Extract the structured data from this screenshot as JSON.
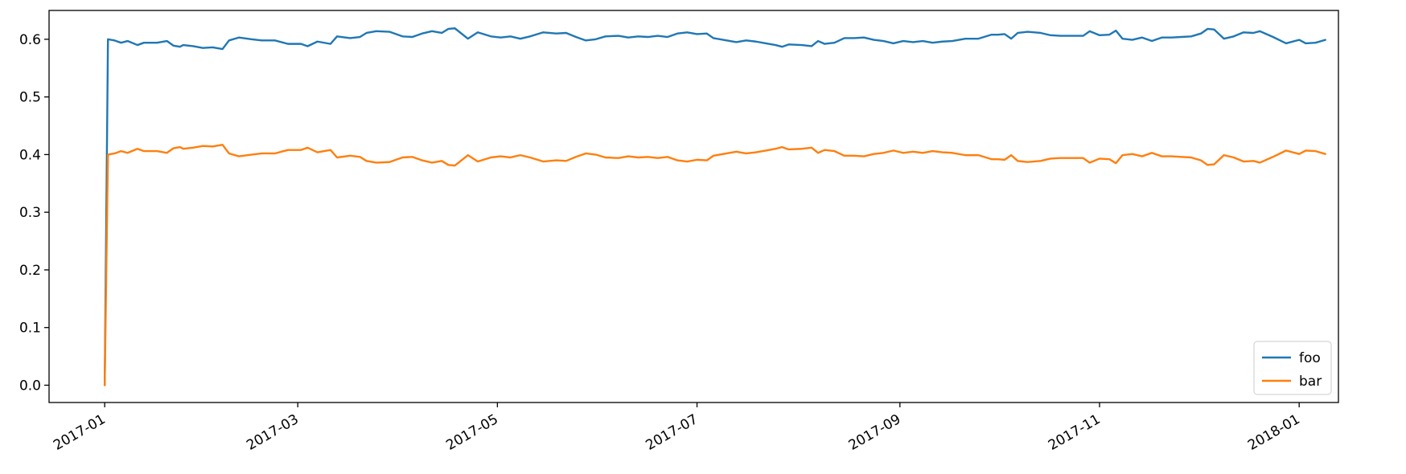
{
  "chart_data": {
    "type": "line",
    "title": "",
    "xlabel": "",
    "ylabel": "",
    "x_axis_type": "date",
    "xlim": [
      "2016-12-15",
      "2018-01-13"
    ],
    "ylim": [
      -0.03,
      0.65
    ],
    "y_ticks": [
      0.0,
      0.1,
      0.2,
      0.3,
      0.4,
      0.5,
      0.6
    ],
    "x_ticks": [
      "2017-01",
      "2017-03",
      "2017-05",
      "2017-07",
      "2017-09",
      "2017-11",
      "2018-01"
    ],
    "x_tick_dates": [
      "2017-01-01",
      "2017-03-01",
      "2017-05-01",
      "2017-07-01",
      "2017-09-01",
      "2017-11-01",
      "2018-01-01"
    ],
    "x_tick_rotation": "30 degrees",
    "grid": false,
    "legend_position": "lower right",
    "series": [
      {
        "name": "foo",
        "color": "#1f77b4",
        "points": [
          [
            "2017-01-01",
            0.0
          ],
          [
            "2017-01-02",
            0.6
          ],
          [
            "2017-01-04",
            0.598
          ],
          [
            "2017-01-06",
            0.594
          ],
          [
            "2017-01-08",
            0.597
          ],
          [
            "2017-01-11",
            0.59
          ],
          [
            "2017-01-13",
            0.594
          ],
          [
            "2017-01-17",
            0.594
          ],
          [
            "2017-01-20",
            0.597
          ],
          [
            "2017-01-22",
            0.589
          ],
          [
            "2017-01-24",
            0.587
          ],
          [
            "2017-01-25",
            0.59
          ],
          [
            "2017-01-28",
            0.588
          ],
          [
            "2017-01-31",
            0.585
          ],
          [
            "2017-02-03",
            0.586
          ],
          [
            "2017-02-06",
            0.583
          ],
          [
            "2017-02-08",
            0.598
          ],
          [
            "2017-02-11",
            0.603
          ],
          [
            "2017-02-15",
            0.6
          ],
          [
            "2017-02-18",
            0.598
          ],
          [
            "2017-02-22",
            0.598
          ],
          [
            "2017-02-26",
            0.592
          ],
          [
            "2017-03-02",
            0.592
          ],
          [
            "2017-03-04",
            0.588
          ],
          [
            "2017-03-07",
            0.596
          ],
          [
            "2017-03-11",
            0.592
          ],
          [
            "2017-03-13",
            0.605
          ],
          [
            "2017-03-17",
            0.602
          ],
          [
            "2017-03-20",
            0.604
          ],
          [
            "2017-03-22",
            0.611
          ],
          [
            "2017-03-25",
            0.614
          ],
          [
            "2017-03-29",
            0.613
          ],
          [
            "2017-04-02",
            0.605
          ],
          [
            "2017-04-05",
            0.604
          ],
          [
            "2017-04-08",
            0.61
          ],
          [
            "2017-04-11",
            0.614
          ],
          [
            "2017-04-14",
            0.611
          ],
          [
            "2017-04-16",
            0.618
          ],
          [
            "2017-04-18",
            0.619
          ],
          [
            "2017-04-22",
            0.601
          ],
          [
            "2017-04-25",
            0.612
          ],
          [
            "2017-04-29",
            0.605
          ],
          [
            "2017-05-02",
            0.603
          ],
          [
            "2017-05-05",
            0.605
          ],
          [
            "2017-05-08",
            0.601
          ],
          [
            "2017-05-11",
            0.605
          ],
          [
            "2017-05-15",
            0.612
          ],
          [
            "2017-05-19",
            0.61
          ],
          [
            "2017-05-22",
            0.611
          ],
          [
            "2017-05-25",
            0.604
          ],
          [
            "2017-05-28",
            0.598
          ],
          [
            "2017-05-31",
            0.6
          ],
          [
            "2017-06-03",
            0.605
          ],
          [
            "2017-06-07",
            0.606
          ],
          [
            "2017-06-10",
            0.603
          ],
          [
            "2017-06-13",
            0.605
          ],
          [
            "2017-06-16",
            0.604
          ],
          [
            "2017-06-19",
            0.606
          ],
          [
            "2017-06-22",
            0.604
          ],
          [
            "2017-06-25",
            0.61
          ],
          [
            "2017-06-28",
            0.612
          ],
          [
            "2017-07-01",
            0.609
          ],
          [
            "2017-07-04",
            0.61
          ],
          [
            "2017-07-06",
            0.602
          ],
          [
            "2017-07-09",
            0.599
          ],
          [
            "2017-07-13",
            0.595
          ],
          [
            "2017-07-16",
            0.598
          ],
          [
            "2017-07-19",
            0.596
          ],
          [
            "2017-07-22",
            0.593
          ],
          [
            "2017-07-25",
            0.59
          ],
          [
            "2017-07-27",
            0.587
          ],
          [
            "2017-07-29",
            0.591
          ],
          [
            "2017-08-02",
            0.59
          ],
          [
            "2017-08-05",
            0.588
          ],
          [
            "2017-08-07",
            0.597
          ],
          [
            "2017-08-09",
            0.592
          ],
          [
            "2017-08-12",
            0.594
          ],
          [
            "2017-08-15",
            0.602
          ],
          [
            "2017-08-18",
            0.602
          ],
          [
            "2017-08-21",
            0.603
          ],
          [
            "2017-08-24",
            0.599
          ],
          [
            "2017-08-27",
            0.597
          ],
          [
            "2017-08-30",
            0.593
          ],
          [
            "2017-09-02",
            0.597
          ],
          [
            "2017-09-05",
            0.595
          ],
          [
            "2017-09-08",
            0.597
          ],
          [
            "2017-09-11",
            0.594
          ],
          [
            "2017-09-14",
            0.596
          ],
          [
            "2017-09-17",
            0.597
          ],
          [
            "2017-09-21",
            0.601
          ],
          [
            "2017-09-25",
            0.601
          ],
          [
            "2017-09-29",
            0.608
          ],
          [
            "2017-10-01",
            0.608
          ],
          [
            "2017-10-03",
            0.609
          ],
          [
            "2017-10-05",
            0.601
          ],
          [
            "2017-10-07",
            0.611
          ],
          [
            "2017-10-10",
            0.613
          ],
          [
            "2017-10-14",
            0.611
          ],
          [
            "2017-10-17",
            0.607
          ],
          [
            "2017-10-20",
            0.606
          ],
          [
            "2017-10-24",
            0.606
          ],
          [
            "2017-10-27",
            0.606
          ],
          [
            "2017-10-29",
            0.614
          ],
          [
            "2017-11-01",
            0.607
          ],
          [
            "2017-11-04",
            0.608
          ],
          [
            "2017-11-06",
            0.615
          ],
          [
            "2017-11-08",
            0.601
          ],
          [
            "2017-11-11",
            0.599
          ],
          [
            "2017-11-14",
            0.603
          ],
          [
            "2017-11-17",
            0.597
          ],
          [
            "2017-11-20",
            0.603
          ],
          [
            "2017-11-23",
            0.603
          ],
          [
            "2017-11-26",
            0.604
          ],
          [
            "2017-11-29",
            0.605
          ],
          [
            "2017-12-02",
            0.61
          ],
          [
            "2017-12-04",
            0.618
          ],
          [
            "2017-12-06",
            0.617
          ],
          [
            "2017-12-09",
            0.601
          ],
          [
            "2017-12-12",
            0.605
          ],
          [
            "2017-12-15",
            0.612
          ],
          [
            "2017-12-18",
            0.611
          ],
          [
            "2017-12-20",
            0.614
          ],
          [
            "2017-12-24",
            0.604
          ],
          [
            "2017-12-28",
            0.593
          ],
          [
            "2018-01-01",
            0.599
          ],
          [
            "2018-01-03",
            0.593
          ],
          [
            "2018-01-06",
            0.594
          ],
          [
            "2018-01-09",
            0.599
          ]
        ]
      },
      {
        "name": "bar",
        "color": "#ff7f0e",
        "points": [
          [
            "2017-01-01",
            0.0
          ],
          [
            "2017-01-02",
            0.4
          ],
          [
            "2017-01-04",
            0.402
          ],
          [
            "2017-01-06",
            0.406
          ],
          [
            "2017-01-08",
            0.403
          ],
          [
            "2017-01-11",
            0.41
          ],
          [
            "2017-01-13",
            0.406
          ],
          [
            "2017-01-17",
            0.406
          ],
          [
            "2017-01-20",
            0.403
          ],
          [
            "2017-01-22",
            0.411
          ],
          [
            "2017-01-24",
            0.413
          ],
          [
            "2017-01-25",
            0.41
          ],
          [
            "2017-01-28",
            0.412
          ],
          [
            "2017-01-31",
            0.415
          ],
          [
            "2017-02-03",
            0.414
          ],
          [
            "2017-02-06",
            0.417
          ],
          [
            "2017-02-08",
            0.402
          ],
          [
            "2017-02-11",
            0.397
          ],
          [
            "2017-02-15",
            0.4
          ],
          [
            "2017-02-18",
            0.402
          ],
          [
            "2017-02-22",
            0.402
          ],
          [
            "2017-02-26",
            0.408
          ],
          [
            "2017-03-02",
            0.408
          ],
          [
            "2017-03-04",
            0.412
          ],
          [
            "2017-03-07",
            0.404
          ],
          [
            "2017-03-11",
            0.408
          ],
          [
            "2017-03-13",
            0.395
          ],
          [
            "2017-03-17",
            0.398
          ],
          [
            "2017-03-20",
            0.396
          ],
          [
            "2017-03-22",
            0.389
          ],
          [
            "2017-03-25",
            0.386
          ],
          [
            "2017-03-29",
            0.387
          ],
          [
            "2017-04-02",
            0.395
          ],
          [
            "2017-04-05",
            0.396
          ],
          [
            "2017-04-08",
            0.39
          ],
          [
            "2017-04-11",
            0.386
          ],
          [
            "2017-04-14",
            0.389
          ],
          [
            "2017-04-16",
            0.382
          ],
          [
            "2017-04-18",
            0.381
          ],
          [
            "2017-04-22",
            0.399
          ],
          [
            "2017-04-25",
            0.388
          ],
          [
            "2017-04-29",
            0.395
          ],
          [
            "2017-05-02",
            0.397
          ],
          [
            "2017-05-05",
            0.395
          ],
          [
            "2017-05-08",
            0.399
          ],
          [
            "2017-05-11",
            0.395
          ],
          [
            "2017-05-15",
            0.388
          ],
          [
            "2017-05-19",
            0.39
          ],
          [
            "2017-05-22",
            0.389
          ],
          [
            "2017-05-25",
            0.396
          ],
          [
            "2017-05-28",
            0.402
          ],
          [
            "2017-05-31",
            0.4
          ],
          [
            "2017-06-03",
            0.395
          ],
          [
            "2017-06-07",
            0.394
          ],
          [
            "2017-06-10",
            0.397
          ],
          [
            "2017-06-13",
            0.395
          ],
          [
            "2017-06-16",
            0.396
          ],
          [
            "2017-06-19",
            0.394
          ],
          [
            "2017-06-22",
            0.396
          ],
          [
            "2017-06-25",
            0.39
          ],
          [
            "2017-06-28",
            0.388
          ],
          [
            "2017-07-01",
            0.391
          ],
          [
            "2017-07-04",
            0.39
          ],
          [
            "2017-07-06",
            0.398
          ],
          [
            "2017-07-09",
            0.401
          ],
          [
            "2017-07-13",
            0.405
          ],
          [
            "2017-07-16",
            0.402
          ],
          [
            "2017-07-19",
            0.404
          ],
          [
            "2017-07-22",
            0.407
          ],
          [
            "2017-07-25",
            0.41
          ],
          [
            "2017-07-27",
            0.413
          ],
          [
            "2017-07-29",
            0.409
          ],
          [
            "2017-08-02",
            0.41
          ],
          [
            "2017-08-05",
            0.412
          ],
          [
            "2017-08-07",
            0.403
          ],
          [
            "2017-08-09",
            0.408
          ],
          [
            "2017-08-12",
            0.406
          ],
          [
            "2017-08-15",
            0.398
          ],
          [
            "2017-08-18",
            0.398
          ],
          [
            "2017-08-21",
            0.397
          ],
          [
            "2017-08-24",
            0.401
          ],
          [
            "2017-08-27",
            0.403
          ],
          [
            "2017-08-30",
            0.407
          ],
          [
            "2017-09-02",
            0.403
          ],
          [
            "2017-09-05",
            0.405
          ],
          [
            "2017-09-08",
            0.403
          ],
          [
            "2017-09-11",
            0.406
          ],
          [
            "2017-09-14",
            0.404
          ],
          [
            "2017-09-17",
            0.403
          ],
          [
            "2017-09-21",
            0.399
          ],
          [
            "2017-09-25",
            0.399
          ],
          [
            "2017-09-29",
            0.392
          ],
          [
            "2017-10-01",
            0.392
          ],
          [
            "2017-10-03",
            0.391
          ],
          [
            "2017-10-05",
            0.399
          ],
          [
            "2017-10-07",
            0.389
          ],
          [
            "2017-10-10",
            0.387
          ],
          [
            "2017-10-14",
            0.389
          ],
          [
            "2017-10-17",
            0.393
          ],
          [
            "2017-10-20",
            0.394
          ],
          [
            "2017-10-24",
            0.394
          ],
          [
            "2017-10-27",
            0.394
          ],
          [
            "2017-10-29",
            0.386
          ],
          [
            "2017-11-01",
            0.393
          ],
          [
            "2017-11-04",
            0.392
          ],
          [
            "2017-11-06",
            0.385
          ],
          [
            "2017-11-08",
            0.399
          ],
          [
            "2017-11-11",
            0.401
          ],
          [
            "2017-11-14",
            0.397
          ],
          [
            "2017-11-17",
            0.403
          ],
          [
            "2017-11-20",
            0.397
          ],
          [
            "2017-11-23",
            0.397
          ],
          [
            "2017-11-26",
            0.396
          ],
          [
            "2017-11-29",
            0.395
          ],
          [
            "2017-12-02",
            0.39
          ],
          [
            "2017-12-04",
            0.382
          ],
          [
            "2017-12-06",
            0.383
          ],
          [
            "2017-12-09",
            0.399
          ],
          [
            "2017-12-12",
            0.395
          ],
          [
            "2017-12-15",
            0.388
          ],
          [
            "2017-12-18",
            0.389
          ],
          [
            "2017-12-20",
            0.386
          ],
          [
            "2017-12-24",
            0.396
          ],
          [
            "2017-12-28",
            0.407
          ],
          [
            "2018-01-01",
            0.401
          ],
          [
            "2018-01-03",
            0.407
          ],
          [
            "2018-01-06",
            0.406
          ],
          [
            "2018-01-09",
            0.401
          ]
        ]
      }
    ]
  }
}
